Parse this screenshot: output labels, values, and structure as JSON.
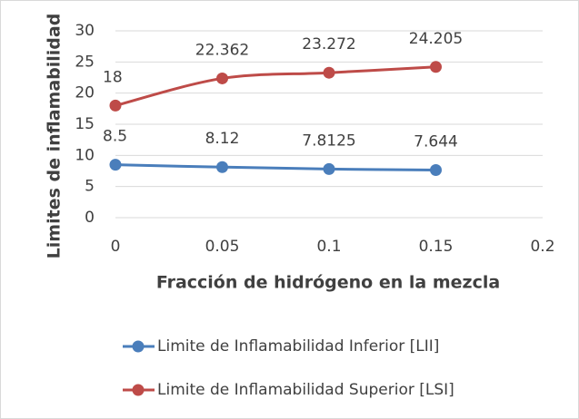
{
  "chart_data": {
    "type": "line",
    "x_label": "Fracción de hidrógeno en la mezcla",
    "y_label": "Limites de inflamabilidad",
    "x": [
      0,
      0.05,
      0.1,
      0.15
    ],
    "series": [
      {
        "name": "Limite de Inflamabilidad Inferior [LII]",
        "color": "#4a7ebb",
        "values": [
          8.5,
          8.12,
          7.8125,
          7.644
        ]
      },
      {
        "name": "Limite de Inflamabilidad Superior [LSI]",
        "color": "#be4b48",
        "values": [
          18,
          22.362,
          23.272,
          24.205
        ]
      }
    ],
    "xlim": [
      0,
      0.2
    ],
    "xticks": [
      0,
      0.05,
      0.1,
      0.15,
      0.2
    ],
    "ylim": [
      0,
      30
    ],
    "yticks": [
      0,
      5,
      10,
      15,
      20,
      25,
      30
    ],
    "grid": true,
    "smooth": true,
    "data_labels": true,
    "legend": "bottom"
  }
}
